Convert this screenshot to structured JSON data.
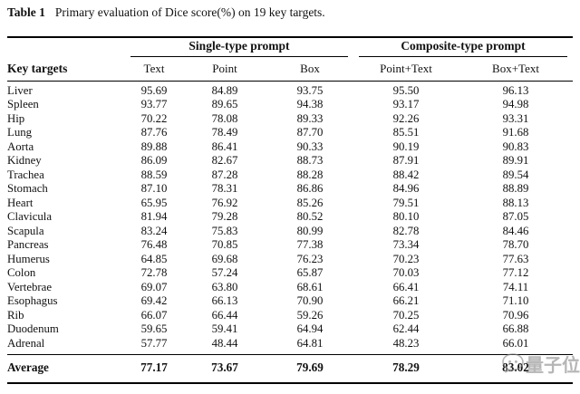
{
  "caption": {
    "label": "Table 1",
    "text": "Primary evaluation of Dice score(%) on 19 key targets."
  },
  "table": {
    "group_headers": [
      "Single-type prompt",
      "Composite-type prompt"
    ],
    "col_headers": [
      "Key targets",
      "Text",
      "Point",
      "Box",
      "Point+Text",
      "Box+Text"
    ],
    "rows": [
      {
        "target": "Liver",
        "values": [
          "95.69",
          "84.89",
          "93.75",
          "95.50",
          "96.13"
        ]
      },
      {
        "target": "Spleen",
        "values": [
          "93.77",
          "89.65",
          "94.38",
          "93.17",
          "94.98"
        ]
      },
      {
        "target": "Hip",
        "values": [
          "70.22",
          "78.08",
          "89.33",
          "92.26",
          "93.31"
        ]
      },
      {
        "target": "Lung",
        "values": [
          "87.76",
          "78.49",
          "87.70",
          "85.51",
          "91.68"
        ]
      },
      {
        "target": "Aorta",
        "values": [
          "89.88",
          "86.41",
          "90.33",
          "90.19",
          "90.83"
        ]
      },
      {
        "target": "Kidney",
        "values": [
          "86.09",
          "82.67",
          "88.73",
          "87.91",
          "89.91"
        ]
      },
      {
        "target": "Trachea",
        "values": [
          "88.59",
          "87.28",
          "88.28",
          "88.42",
          "89.54"
        ]
      },
      {
        "target": "Stomach",
        "values": [
          "87.10",
          "78.31",
          "86.86",
          "84.96",
          "88.89"
        ]
      },
      {
        "target": "Heart",
        "values": [
          "65.95",
          "76.92",
          "85.26",
          "79.51",
          "88.13"
        ]
      },
      {
        "target": "Clavicula",
        "values": [
          "81.94",
          "79.28",
          "80.52",
          "80.10",
          "87.05"
        ]
      },
      {
        "target": "Scapula",
        "values": [
          "83.24",
          "75.83",
          "80.99",
          "82.78",
          "84.46"
        ]
      },
      {
        "target": "Pancreas",
        "values": [
          "76.48",
          "70.85",
          "77.38",
          "73.34",
          "78.70"
        ]
      },
      {
        "target": "Humerus",
        "values": [
          "64.85",
          "69.68",
          "76.23",
          "70.23",
          "77.63"
        ]
      },
      {
        "target": "Colon",
        "values": [
          "72.78",
          "57.24",
          "65.87",
          "70.03",
          "77.12"
        ]
      },
      {
        "target": "Vertebrae",
        "values": [
          "69.07",
          "63.80",
          "68.61",
          "66.41",
          "74.11"
        ]
      },
      {
        "target": "Esophagus",
        "values": [
          "69.42",
          "66.13",
          "70.90",
          "66.21",
          "71.10"
        ]
      },
      {
        "target": "Rib",
        "values": [
          "66.07",
          "66.44",
          "59.26",
          "70.25",
          "70.96"
        ]
      },
      {
        "target": "Duodenum",
        "values": [
          "59.65",
          "59.41",
          "64.94",
          "62.44",
          "66.88"
        ]
      },
      {
        "target": "Adrenal",
        "values": [
          "57.77",
          "48.44",
          "64.81",
          "48.23",
          "66.01"
        ]
      }
    ],
    "average": {
      "label": "Average",
      "values": [
        "77.17",
        "73.67",
        "79.69",
        "78.29",
        "83.02"
      ]
    }
  },
  "watermark": {
    "icon": "chat-bubble-face-icon",
    "text": "量子位"
  },
  "colors": {
    "text": "#111111",
    "rule": "#000000",
    "watermark": "#8a8a8a"
  }
}
